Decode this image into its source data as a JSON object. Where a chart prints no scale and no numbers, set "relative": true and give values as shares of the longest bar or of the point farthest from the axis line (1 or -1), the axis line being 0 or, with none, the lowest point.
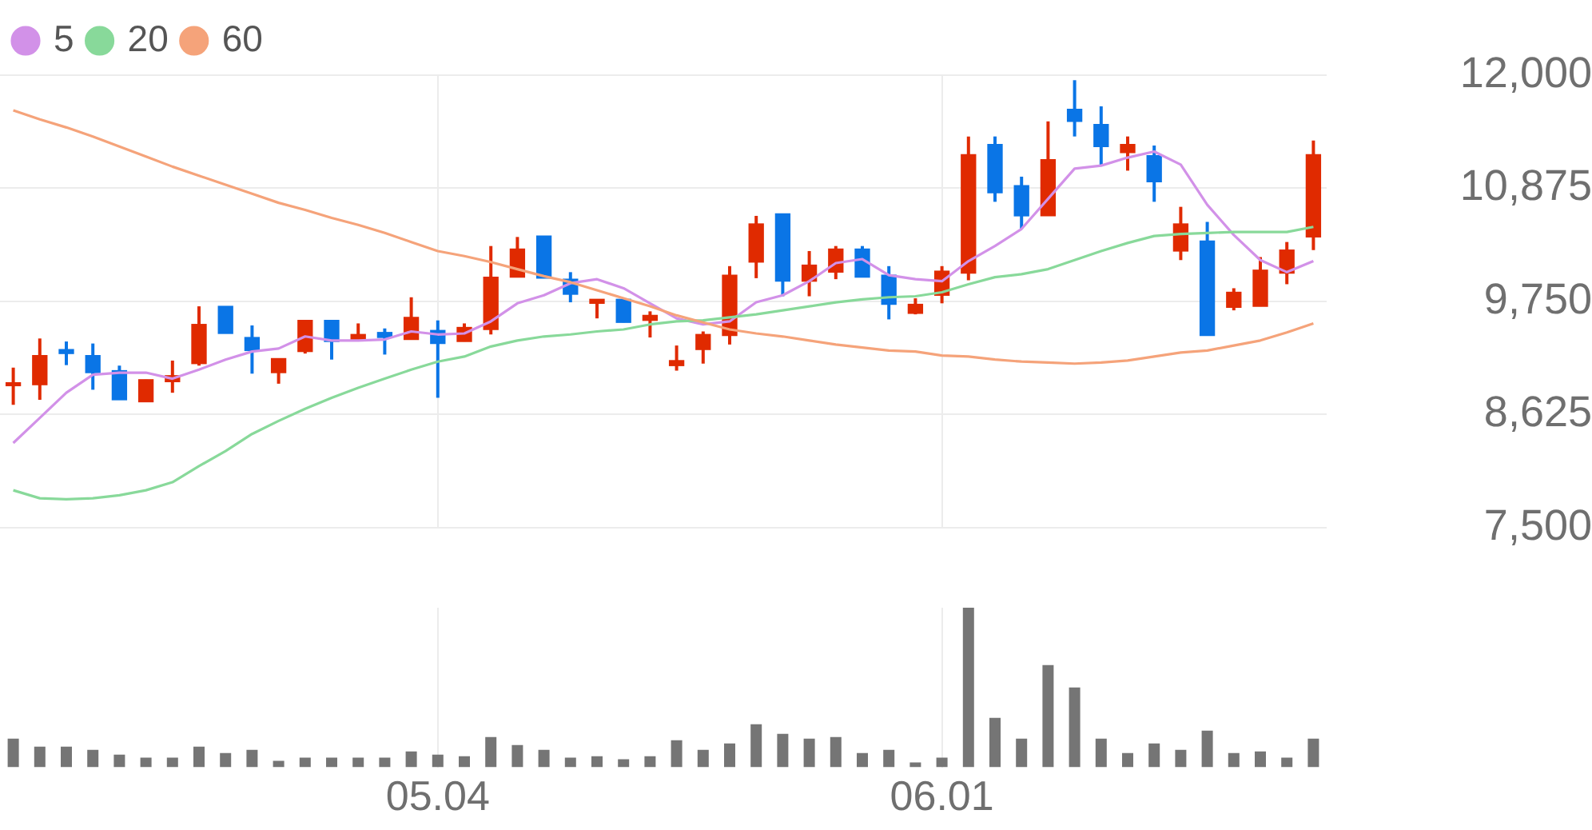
{
  "chart_data": [
    {
      "type": "candlestick",
      "categories": [
        null,
        null,
        null,
        null,
        null,
        null,
        null,
        null,
        null,
        null,
        null,
        null,
        null,
        null,
        null,
        null,
        "05.04",
        null,
        null,
        null,
        null,
        null,
        null,
        null,
        null,
        null,
        null,
        null,
        null,
        null,
        null,
        null,
        null,
        null,
        null,
        "06.01",
        null,
        null,
        null,
        null,
        null,
        null,
        null,
        null,
        null,
        null,
        null,
        null,
        null,
        null
      ],
      "ohlc": [
        [
          8910,
          9090,
          8720,
          8940
        ],
        [
          8920,
          9380,
          8770,
          9210
        ],
        [
          9270,
          9350,
          9115,
          9230
        ],
        [
          9210,
          9330,
          8870,
          9040
        ],
        [
          9060,
          9110,
          8770,
          8770
        ],
        [
          8750,
          8970,
          8750,
          8970
        ],
        [
          8950,
          9160,
          8840,
          9010
        ],
        [
          9130,
          9700,
          9110,
          9520
        ],
        [
          9700,
          9700,
          9430,
          9430
        ],
        [
          9390,
          9510,
          9030,
          9260
        ],
        [
          9040,
          9180,
          8930,
          9180
        ],
        [
          9250,
          9560,
          9230,
          9560
        ],
        [
          9560,
          9560,
          9170,
          9350
        ],
        [
          9370,
          9530,
          9360,
          9420
        ],
        [
          9440,
          9480,
          9220,
          9390
        ],
        [
          9370,
          9790,
          9370,
          9590
        ],
        [
          9460,
          9560,
          8790,
          9330
        ],
        [
          9350,
          9530,
          9350,
          9490
        ],
        [
          9470,
          10300,
          9420,
          9990
        ],
        [
          9990,
          10390,
          9990,
          10270
        ],
        [
          10400,
          10400,
          9980,
          9980
        ],
        [
          9970,
          10040,
          9740,
          9820
        ],
        [
          9730,
          9770,
          9580,
          9770
        ],
        [
          9770,
          9770,
          9540,
          9540
        ],
        [
          9560,
          9650,
          9390,
          9610
        ],
        [
          9110,
          9310,
          9060,
          9160
        ],
        [
          9270,
          9450,
          9130,
          9420
        ],
        [
          9410,
          10100,
          9320,
          10010
        ],
        [
          10140,
          10600,
          9980,
          10520
        ],
        [
          10620,
          10620,
          9800,
          9950
        ],
        [
          9950,
          10250,
          9800,
          10110
        ],
        [
          10040,
          10300,
          9970,
          10270
        ],
        [
          10270,
          10300,
          9990,
          9990
        ],
        [
          10010,
          10100,
          9570,
          9720
        ],
        [
          9630,
          9780,
          9620,
          9720
        ],
        [
          9810,
          10100,
          9730,
          10050
        ],
        [
          10030,
          11390,
          9960,
          11210
        ],
        [
          11310,
          11390,
          10740,
          10830
        ],
        [
          10900,
          10990,
          10470,
          10600
        ],
        [
          10600,
          11540,
          10600,
          11160
        ],
        [
          11660,
          11950,
          11390,
          11540
        ],
        [
          11510,
          11690,
          11110,
          11290
        ],
        [
          11230,
          11390,
          11050,
          11310
        ],
        [
          11200,
          11300,
          10740,
          10940
        ],
        [
          10250,
          10690,
          10160,
          10520
        ],
        [
          10350,
          10540,
          9410,
          9410
        ],
        [
          9690,
          9880,
          9660,
          9840
        ],
        [
          9700,
          10190,
          9700,
          10060
        ],
        [
          10030,
          10340,
          9920,
          10260
        ],
        [
          10390,
          11350,
          10260,
          11210
        ]
      ],
      "colors": [
        "#e02a00",
        "#e02a00",
        "#0a75e6",
        "#0a75e6",
        "#0a75e6",
        "#e02a00",
        "#e02a00",
        "#e02a00",
        "#0a75e6",
        "#0a75e6",
        "#e02a00",
        "#e02a00",
        "#0a75e6",
        "#e02a00",
        "#0a75e6",
        "#e02a00",
        "#0a75e6",
        "#e02a00",
        "#e02a00",
        "#e02a00",
        "#0a75e6",
        "#0a75e6",
        "#e02a00",
        "#0a75e6",
        "#e02a00",
        "#e02a00",
        "#e02a00",
        "#e02a00",
        "#e02a00",
        "#0a75e6",
        "#e02a00",
        "#e02a00",
        "#0a75e6",
        "#0a75e6",
        "#e02a00",
        "#e02a00",
        "#e02a00",
        "#0a75e6",
        "#0a75e6",
        "#e02a00",
        "#0a75e6",
        "#0a75e6",
        "#e02a00",
        "#0a75e6",
        "#e02a00",
        "#0a75e6",
        "#e02a00",
        "#e02a00",
        "#e02a00",
        "#e02a00"
      ],
      "series": [
        {
          "name": "5",
          "type": "line",
          "color": "#d291e8",
          "values": [
            8340,
            8590,
            8840,
            9020,
            9040,
            9040,
            8980,
            9070,
            9170,
            9250,
            9280,
            9400,
            9360,
            9360,
            9370,
            9450,
            9420,
            9430,
            9550,
            9730,
            9810,
            9930,
            9970,
            9880,
            9730,
            9580,
            9520,
            9550,
            9740,
            9810,
            9950,
            10130,
            10170,
            10010,
            9970,
            9950,
            10150,
            10300,
            10470,
            10770,
            11070,
            11100,
            11180,
            11240,
            11110,
            10710,
            10410,
            10160,
            10040,
            10150
          ]
        },
        {
          "name": "20",
          "type": "line",
          "color": "#88d99a",
          "values": [
            7870,
            7790,
            7780,
            7790,
            7820,
            7870,
            7950,
            8110,
            8260,
            8430,
            8560,
            8680,
            8790,
            8890,
            8980,
            9070,
            9150,
            9200,
            9300,
            9360,
            9400,
            9420,
            9450,
            9470,
            9520,
            9550,
            9560,
            9590,
            9620,
            9660,
            9700,
            9740,
            9770,
            9790,
            9800,
            9840,
            9920,
            9990,
            10020,
            10070,
            10160,
            10250,
            10330,
            10400,
            10420,
            10430,
            10440,
            10440,
            10440,
            10490
          ]
        },
        {
          "name": "60",
          "type": "line",
          "color": "#f5a37a",
          "values": [
            11650,
            11560,
            11480,
            11390,
            11290,
            11190,
            11090,
            11000,
            10910,
            10820,
            10730,
            10660,
            10580,
            10510,
            10430,
            10340,
            10250,
            10200,
            10140,
            10070,
            10000,
            9940,
            9860,
            9780,
            9700,
            9610,
            9540,
            9470,
            9430,
            9400,
            9360,
            9320,
            9290,
            9260,
            9250,
            9210,
            9200,
            9170,
            9150,
            9140,
            9130,
            9140,
            9160,
            9200,
            9240,
            9260,
            9310,
            9360,
            9440,
            9530
          ]
        }
      ],
      "ylim": [
        7500,
        12000
      ],
      "yticks": [
        {
          "value": 7500,
          "label": "7,500"
        },
        {
          "value": 8625,
          "label": "8,625"
        },
        {
          "value": 9750,
          "label": "9,750"
        },
        {
          "value": 10875,
          "label": "10,875"
        },
        {
          "value": 12000,
          "label": "12,000"
        }
      ],
      "grid": true,
      "legend": "top left",
      "tick_labels": "y",
      "marker": "none"
    },
    {
      "type": "bar",
      "categories": [
        null,
        null,
        null,
        null,
        null,
        null,
        null,
        null,
        null,
        null,
        null,
        null,
        null,
        null,
        null,
        null,
        "05.04",
        null,
        null,
        null,
        null,
        null,
        null,
        null,
        null,
        null,
        null,
        null,
        null,
        null,
        null,
        null,
        null,
        null,
        null,
        "06.01",
        null,
        null,
        null,
        null,
        null,
        null,
        null,
        null,
        null,
        null,
        null,
        null,
        null,
        null
      ],
      "values": [
        0.18,
        0.13,
        0.13,
        0.11,
        0.08,
        0.06,
        0.06,
        0.13,
        0.09,
        0.11,
        0.04,
        0.06,
        0.06,
        0.06,
        0.06,
        0.1,
        0.08,
        0.07,
        0.19,
        0.14,
        0.11,
        0.06,
        0.07,
        0.05,
        0.07,
        0.17,
        0.11,
        0.15,
        0.27,
        0.21,
        0.18,
        0.19,
        0.09,
        0.11,
        0.03,
        0.06,
        1,
        0.31,
        0.18,
        0.64,
        0.5,
        0.18,
        0.09,
        0.15,
        0.11,
        0.23,
        0.09,
        0.1,
        0.06,
        0.18
      ],
      "color": "#757575",
      "relative": true,
      "grid": "x",
      "tick_labels": "x"
    }
  ]
}
